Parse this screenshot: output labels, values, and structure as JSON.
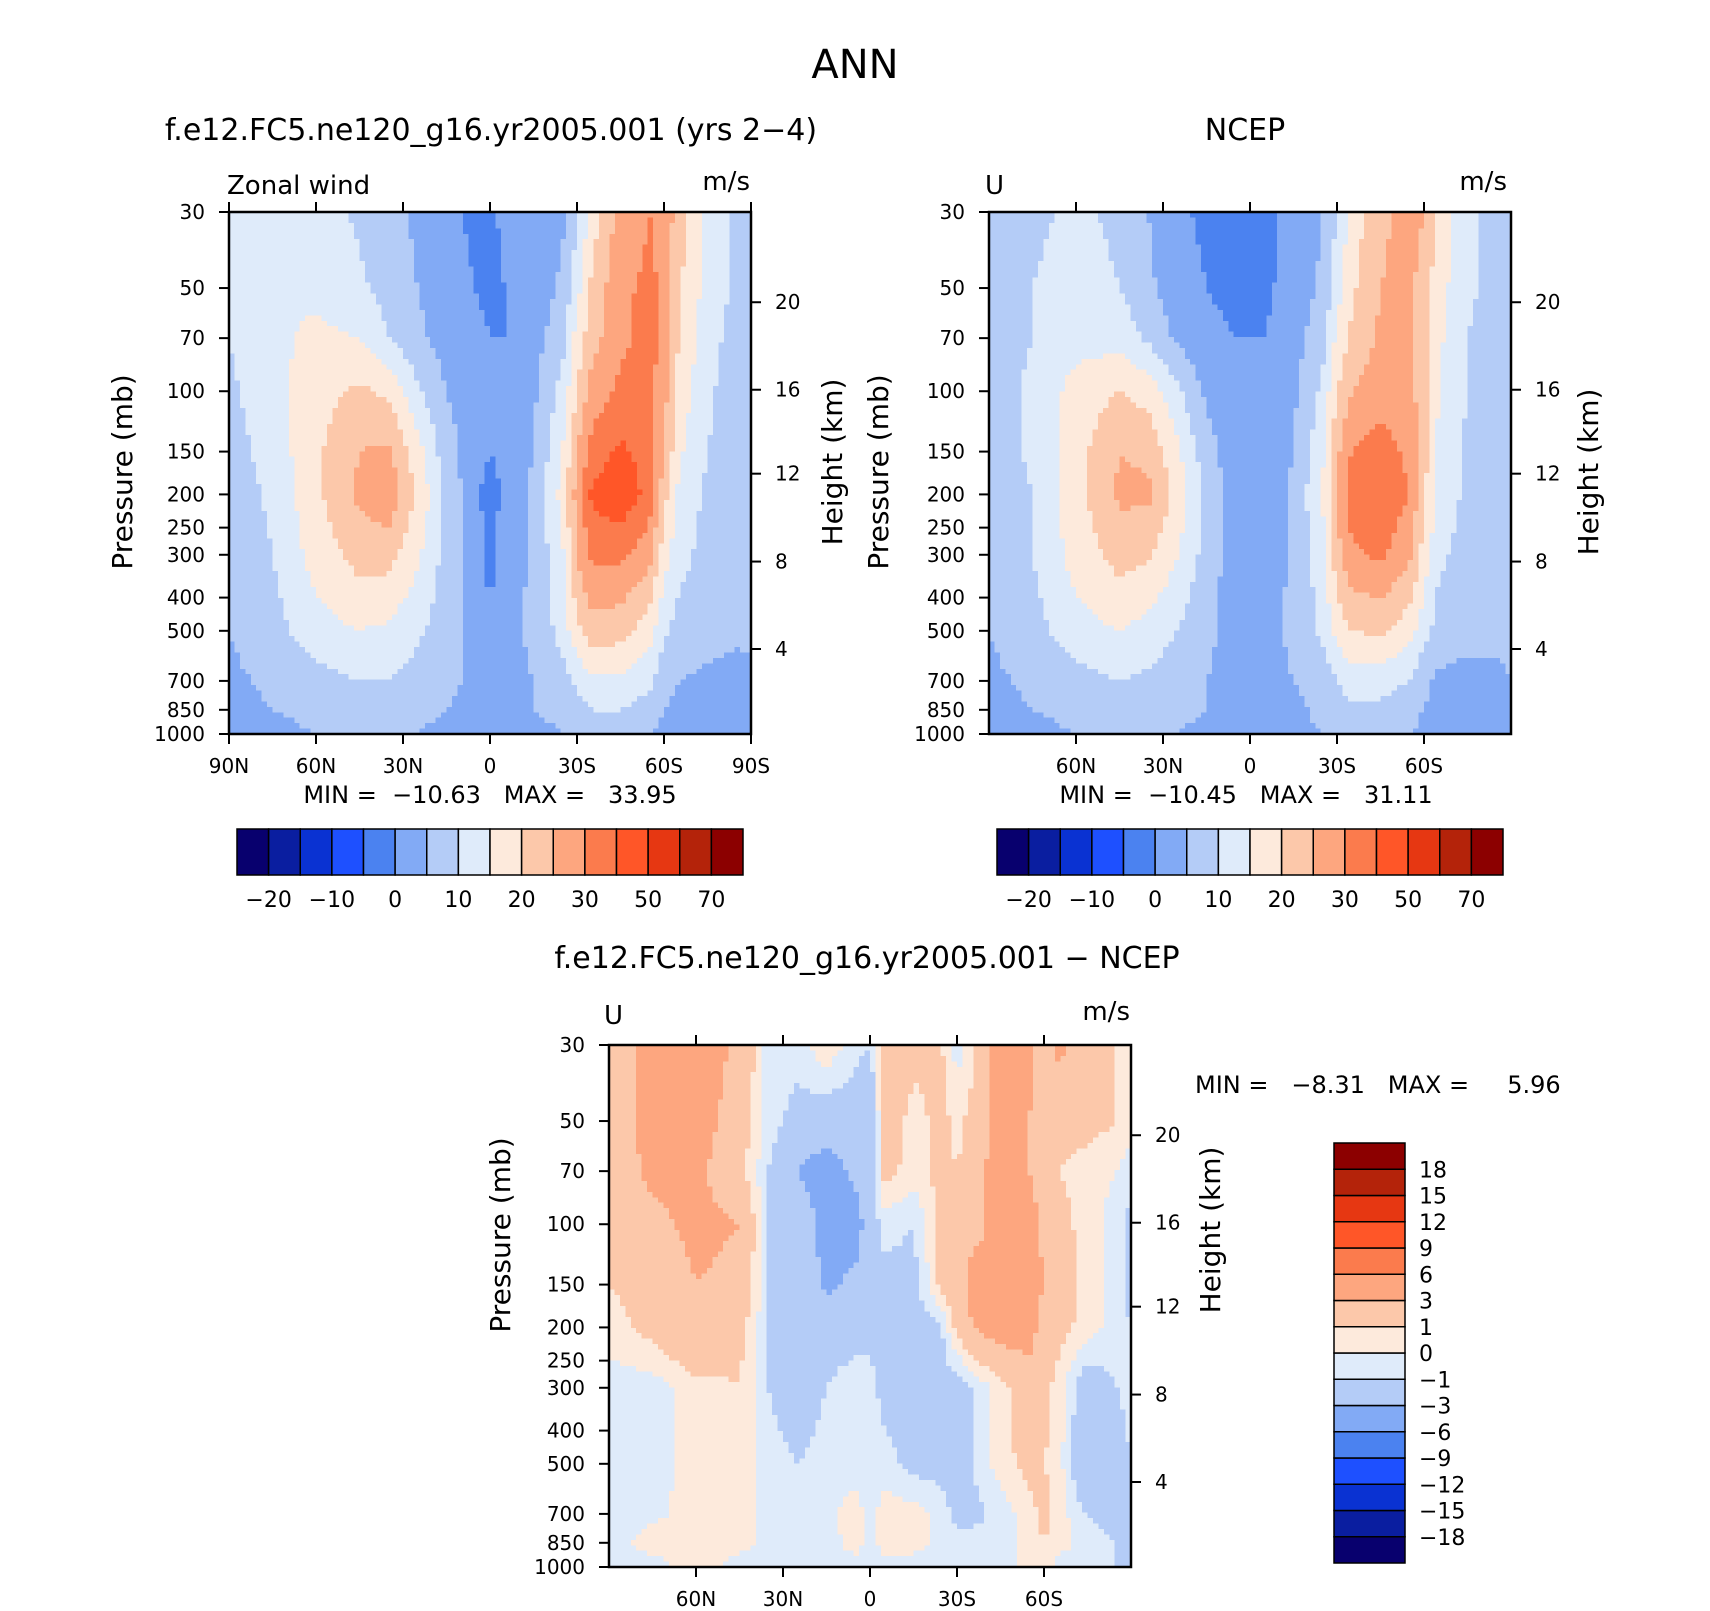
{
  "page_title": "ANN",
  "chart_data": [
    {
      "type": "heatmap",
      "id": "model",
      "title": "f.e12.FC5.ne120_g16.yr2005.001 (yrs 2−4)",
      "var_label": "Zonal wind",
      "units": "m/s",
      "ylabel": "Pressure (mb)",
      "y2label": "Height (km)",
      "xlim": [
        90,
        -90
      ],
      "xticks": [
        90,
        60,
        30,
        0,
        -30,
        -60,
        -90
      ],
      "xtick_labels": [
        "90N",
        "60N",
        "30N",
        "0",
        "30S",
        "60S",
        "90S"
      ],
      "yscale": "log",
      "ylim": [
        1000,
        30
      ],
      "yticks": [
        30,
        50,
        70,
        100,
        150,
        200,
        250,
        300,
        400,
        500,
        700,
        850,
        1000
      ],
      "ytick_labels": [
        "30",
        "50",
        "70",
        "100",
        "150",
        "200",
        "250",
        "300",
        "400",
        "500",
        "700",
        "850",
        "1000"
      ],
      "y2ticks": [
        20,
        16,
        12,
        8,
        4
      ],
      "y2tick_labels": [
        "20",
        "16",
        "12",
        "8",
        "4"
      ],
      "y2_pressure": [
        55,
        99,
        174,
        314,
        565
      ],
      "min": -10.63,
      "max": 33.95,
      "minmax_text": "MIN =  −10.63   MAX =   33.95",
      "levels": [
        -25,
        -20,
        -15,
        -10,
        -5,
        0,
        5,
        10,
        15,
        20,
        25,
        30,
        40,
        50,
        60,
        70
      ],
      "colorbar_labels": [
        "−20",
        "−10",
        "0",
        "10",
        "20",
        "30",
        "50",
        "70"
      ],
      "colorbar_label_edges": [
        1,
        3,
        5,
        7,
        9,
        11,
        13,
        15
      ],
      "colorbar_orientation": "horizontal",
      "x": [
        90,
        75,
        60,
        45,
        35,
        25,
        15,
        5,
        0,
        -5,
        -15,
        -25,
        -30,
        -35,
        -45,
        -55,
        -60,
        -65,
        -75,
        -85,
        -90
      ],
      "y": [
        30,
        50,
        70,
        100,
        150,
        200,
        300,
        500,
        700,
        850,
        1000
      ],
      "z": [
        [
          7,
          10,
          8,
          4,
          2,
          -1,
          -4,
          -6,
          -6,
          -4,
          -4,
          -1,
          4,
          12,
          22,
          25,
          24,
          17,
          8,
          4,
          2
        ],
        [
          6,
          10,
          9,
          6,
          3,
          0,
          -3,
          -5,
          -6,
          -5,
          -3,
          1,
          8,
          16,
          24,
          26,
          24,
          16,
          8,
          4,
          2
        ],
        [
          5,
          9,
          11,
          10,
          5,
          1,
          -2,
          -4,
          -5,
          -5,
          -2,
          3,
          12,
          18,
          24,
          27,
          24,
          15,
          7,
          3,
          2
        ],
        [
          4,
          8,
          13,
          16,
          14,
          6,
          0,
          -3,
          -4,
          -4,
          -1,
          7,
          15,
          22,
          26,
          26,
          22,
          13,
          6,
          2,
          2
        ],
        [
          3,
          7,
          14,
          20,
          21,
          12,
          2,
          -3,
          -5,
          -4,
          0,
          10,
          20,
          27,
          31,
          28,
          20,
          11,
          5,
          2,
          2
        ],
        [
          2,
          6,
          14,
          21,
          24,
          14,
          4,
          -4,
          -7,
          -4,
          1,
          12,
          22,
          31,
          34,
          28,
          17,
          9,
          4,
          2,
          1
        ],
        [
          1,
          5,
          12,
          17,
          17,
          11,
          3,
          -3,
          -6,
          -3,
          1,
          9,
          20,
          26,
          26,
          22,
          12,
          7,
          3,
          2,
          1
        ],
        [
          0,
          3,
          8,
          10,
          9,
          6,
          2,
          -2,
          -5,
          -2,
          1,
          7,
          14,
          18,
          17,
          12,
          6,
          3,
          2,
          1,
          1
        ],
        [
          -1,
          1,
          3,
          5,
          5,
          3,
          1,
          -1,
          -3,
          -1,
          0,
          3,
          6,
          9,
          9,
          6,
          2,
          0,
          -1,
          -2,
          -1
        ],
        [
          -2,
          0,
          1,
          3,
          2,
          1,
          0,
          -1,
          -2,
          -1,
          0,
          1,
          3,
          5,
          5,
          3,
          0,
          -2,
          -3,
          -2,
          -1
        ],
        [
          -3,
          -1,
          0,
          1,
          1,
          0,
          -1,
          -2,
          -1,
          -1,
          -1,
          0,
          1,
          2,
          2,
          1,
          -2,
          -4,
          -4,
          -3,
          -2
        ]
      ]
    },
    {
      "type": "heatmap",
      "id": "obs",
      "title": "NCEP",
      "var_label": "U",
      "units": "m/s",
      "ylabel": "Pressure (mb)",
      "y2label": "Height (km)",
      "xlim": [
        90,
        -90
      ],
      "xticks": [
        60,
        30,
        0,
        -30,
        -60
      ],
      "xtick_labels": [
        "60N",
        "30N",
        "0",
        "30S",
        "60S"
      ],
      "yscale": "log",
      "ylim": [
        1000,
        30
      ],
      "yticks": [
        30,
        50,
        70,
        100,
        150,
        200,
        250,
        300,
        400,
        500,
        700,
        850,
        1000
      ],
      "ytick_labels": [
        "30",
        "50",
        "70",
        "100",
        "150",
        "200",
        "250",
        "300",
        "400",
        "500",
        "700",
        "850",
        "1000"
      ],
      "y2ticks": [
        20,
        16,
        12,
        8,
        4
      ],
      "y2tick_labels": [
        "20",
        "16",
        "12",
        "8",
        "4"
      ],
      "y2_pressure": [
        55,
        99,
        174,
        314,
        565
      ],
      "min": -10.45,
      "max": 31.11,
      "minmax_text": "MIN =  −10.45   MAX =   31.11",
      "levels": [
        -25,
        -20,
        -15,
        -10,
        -5,
        0,
        5,
        10,
        15,
        20,
        25,
        30,
        40,
        50,
        60,
        70
      ],
      "colorbar_labels": [
        "−20",
        "−10",
        "0",
        "10",
        "20",
        "30",
        "50",
        "70"
      ],
      "colorbar_label_edges": [
        1,
        3,
        5,
        7,
        9,
        11,
        13,
        15
      ],
      "colorbar_orientation": "horizontal",
      "x": [
        90,
        75,
        60,
        45,
        35,
        25,
        15,
        5,
        0,
        -5,
        -15,
        -25,
        -30,
        -35,
        -45,
        -55,
        -60,
        -65,
        -75,
        -85,
        -90
      ],
      "y": [
        30,
        50,
        70,
        100,
        150,
        200,
        300,
        500,
        700,
        850,
        1000
      ],
      "z": [
        [
          3,
          4,
          6,
          4,
          0,
          -4,
          -6,
          -7,
          -7,
          -6,
          -4,
          0,
          5,
          12,
          19,
          22,
          20,
          13,
          6,
          3,
          2
        ],
        [
          3,
          5,
          7,
          5,
          1,
          -3,
          -5,
          -6,
          -7,
          -6,
          -3,
          1,
          8,
          14,
          20,
          21,
          18,
          12,
          6,
          3,
          2
        ],
        [
          3,
          5,
          8,
          8,
          4,
          -1,
          -4,
          -5,
          -5,
          -5,
          -2,
          3,
          11,
          16,
          21,
          21,
          17,
          11,
          5,
          3,
          2
        ],
        [
          2,
          6,
          12,
          15,
          13,
          6,
          -1,
          -4,
          -4,
          -4,
          -1,
          6,
          15,
          20,
          23,
          22,
          17,
          10,
          5,
          2,
          2
        ],
        [
          2,
          6,
          13,
          20,
          19,
          11,
          2,
          -3,
          -4,
          -3,
          0,
          9,
          19,
          25,
          27,
          24,
          17,
          9,
          4,
          2,
          1
        ],
        [
          1,
          5,
          13,
          21,
          21,
          13,
          4,
          -3,
          -4,
          -3,
          1,
          10,
          21,
          28,
          29,
          25,
          16,
          8,
          4,
          2,
          1
        ],
        [
          1,
          5,
          12,
          17,
          16,
          10,
          3,
          -3,
          -4,
          -3,
          1,
          8,
          18,
          24,
          26,
          21,
          13,
          6,
          3,
          1,
          1
        ],
        [
          0,
          3,
          8,
          10,
          8,
          5,
          1,
          -2,
          -4,
          -2,
          1,
          6,
          12,
          15,
          16,
          12,
          7,
          3,
          2,
          1,
          1
        ],
        [
          -1,
          1,
          3,
          5,
          4,
          2,
          0,
          -1,
          -3,
          -1,
          0,
          2,
          5,
          7,
          7,
          5,
          1,
          -1,
          -2,
          -1,
          0
        ],
        [
          -2,
          0,
          1,
          3,
          2,
          1,
          0,
          -1,
          -2,
          -1,
          -1,
          1,
          3,
          4,
          4,
          2,
          0,
          -2,
          -3,
          -2,
          -1
        ],
        [
          -3,
          -1,
          0,
          1,
          1,
          0,
          -1,
          -2,
          -1,
          -1,
          -1,
          0,
          1,
          2,
          2,
          1,
          -2,
          -3,
          -3,
          -2,
          -2
        ]
      ]
    },
    {
      "type": "heatmap",
      "id": "diff",
      "title": "f.e12.FC5.ne120_g16.yr2005.001 − NCEP",
      "var_label": "U",
      "units": "m/s",
      "ylabel": "Pressure (mb)",
      "y2label": "Height (km)",
      "xlim": [
        90,
        -90
      ],
      "xticks": [
        60,
        30,
        0,
        -30,
        -60
      ],
      "xtick_labels": [
        "60N",
        "30N",
        "0",
        "30S",
        "60S"
      ],
      "yscale": "log",
      "ylim": [
        1000,
        30
      ],
      "yticks": [
        30,
        50,
        70,
        100,
        150,
        200,
        250,
        300,
        400,
        500,
        700,
        850,
        1000
      ],
      "ytick_labels": [
        "30",
        "50",
        "70",
        "100",
        "150",
        "200",
        "250",
        "300",
        "400",
        "500",
        "700",
        "850",
        "1000"
      ],
      "y2ticks": [
        20,
        16,
        12,
        8,
        4
      ],
      "y2tick_labels": [
        "20",
        "16",
        "12",
        "8",
        "4"
      ],
      "y2_pressure": [
        55,
        99,
        174,
        314,
        565
      ],
      "min": -8.31,
      "max": 5.96,
      "minmax_text": "MIN =   −8.31   MAX =     5.96",
      "levels": [
        -18,
        -15,
        -12,
        -9,
        -6,
        -3,
        -1,
        0,
        1,
        3,
        6,
        9,
        12,
        15,
        18
      ],
      "colorbar_labels": [
        "−18",
        "−15",
        "−12",
        "−9",
        "−6",
        "−3",
        "−1",
        "0",
        "1",
        "3",
        "6",
        "9",
        "12",
        "15",
        "18"
      ],
      "colorbar_label_edges": [
        1,
        2,
        3,
        4,
        5,
        6,
        7,
        8,
        9,
        10,
        11,
        12,
        13,
        14,
        15
      ],
      "colorbar_orientation": "vertical",
      "x": [
        90,
        75,
        60,
        45,
        35,
        25,
        15,
        5,
        0,
        -5,
        -15,
        -25,
        -30,
        -35,
        -45,
        -55,
        -60,
        -65,
        -75,
        -85,
        -90
      ],
      "y": [
        30,
        50,
        70,
        100,
        150,
        200,
        300,
        500,
        700,
        850,
        1000
      ],
      "z": [
        [
          1.5,
          4.0,
          4.5,
          2.5,
          -0.5,
          -0.5,
          0.8,
          -0.5,
          -1.0,
          2.5,
          1.5,
          1.0,
          -0.5,
          0.5,
          4.0,
          3.5,
          2.0,
          3.5,
          1.5,
          1.0,
          0.5
        ],
        [
          1.5,
          4.0,
          4.0,
          2.0,
          -0.5,
          -1.5,
          -2.0,
          -2.0,
          -3.0,
          2.0,
          0.5,
          1.5,
          0.5,
          1.5,
          4.0,
          3.0,
          2.0,
          1.5,
          1.5,
          1.0,
          0.5
        ],
        [
          1.5,
          3.5,
          3.5,
          1.5,
          -1.0,
          -3.0,
          -4.0,
          -2.5,
          -2.0,
          1.5,
          0.5,
          1.5,
          1.0,
          2.0,
          4.0,
          3.0,
          2.0,
          1.0,
          0.5,
          0.0,
          -0.5
        ],
        [
          1.5,
          2.5,
          3.5,
          3.0,
          -1.0,
          -2.0,
          -3.5,
          -4.0,
          -2.0,
          -0.5,
          -1.0,
          1.5,
          1.5,
          2.5,
          3.5,
          4.0,
          2.5,
          1.5,
          0.5,
          -0.5,
          -1.5
        ],
        [
          1.0,
          1.5,
          3.0,
          2.5,
          -1.0,
          -1.5,
          -3.5,
          -2.5,
          -1.5,
          -1.5,
          -1.5,
          1.5,
          2.0,
          3.5,
          3.5,
          4.0,
          3.0,
          2.0,
          0.5,
          -0.5,
          -1.5
        ],
        [
          0.5,
          1.5,
          3.0,
          1.5,
          -1.0,
          -2.0,
          -1.5,
          -1.5,
          -1.5,
          -1.5,
          -2.0,
          -1.0,
          1.5,
          3.0,
          4.0,
          4.0,
          2.0,
          1.5,
          0.5,
          -0.5,
          -1.0
        ],
        [
          -0.5,
          -0.5,
          0.5,
          1.0,
          -1.0,
          -2.0,
          -1.0,
          -0.5,
          -0.5,
          -1.5,
          -2.0,
          -1.5,
          -2.0,
          -1.0,
          0.5,
          2.0,
          1.5,
          0.5,
          -2.0,
          -1.0,
          -0.5
        ],
        [
          -0.5,
          -0.5,
          0.5,
          0.5,
          -0.5,
          -1.0,
          -0.5,
          -0.5,
          -0.5,
          -0.5,
          -1.5,
          -1.5,
          -2.0,
          -1.0,
          0.5,
          1.5,
          1.0,
          0.5,
          -3.0,
          -2.0,
          -1.0
        ],
        [
          -0.5,
          -0.3,
          0.5,
          0.5,
          -0.5,
          -0.5,
          -0.3,
          0.5,
          -0.5,
          0.5,
          0.5,
          -0.5,
          -1.5,
          -1.5,
          -0.5,
          0.5,
          1.5,
          0.5,
          -1.0,
          -1.5,
          -2.5
        ],
        [
          -0.5,
          0.5,
          0.5,
          0.5,
          -0.5,
          -0.5,
          -0.5,
          0.5,
          -0.5,
          0.5,
          0.5,
          -0.5,
          -0.5,
          -0.5,
          -0.5,
          0.5,
          1.0,
          0.5,
          -0.5,
          -1.0,
          -3.0
        ],
        [
          -0.5,
          -0.5,
          0.5,
          -0.5,
          -1.0,
          -0.5,
          -0.5,
          -0.5,
          -0.5,
          -0.5,
          -0.5,
          -1.0,
          -1.0,
          -0.5,
          -0.5,
          0.5,
          0.5,
          -0.5,
          -0.5,
          -1.0,
          -2.0
        ]
      ]
    }
  ],
  "colors": {
    "blue_to_red": [
      "#08006e",
      "#0a1ea0",
      "#0a32d2",
      "#1e50ff",
      "#4b82f0",
      "#82aaf5",
      "#b4ccf7",
      "#dfebfa",
      "#fdeadc",
      "#fcc8aa",
      "#fda67f",
      "#fb7b4d",
      "#ff5628",
      "#e63712",
      "#b4230a",
      "#8c0000"
    ],
    "diff": [
      "#08006e",
      "#0a1ea0",
      "#0a32d2",
      "#1e50ff",
      "#4b82f0",
      "#82aaf5",
      "#b4ccf7",
      "#dfebfa",
      "#fdeadc",
      "#fcc8aa",
      "#fda67f",
      "#fb7b4d",
      "#ff5628",
      "#e63712",
      "#b4230a",
      "#8c0000"
    ]
  }
}
